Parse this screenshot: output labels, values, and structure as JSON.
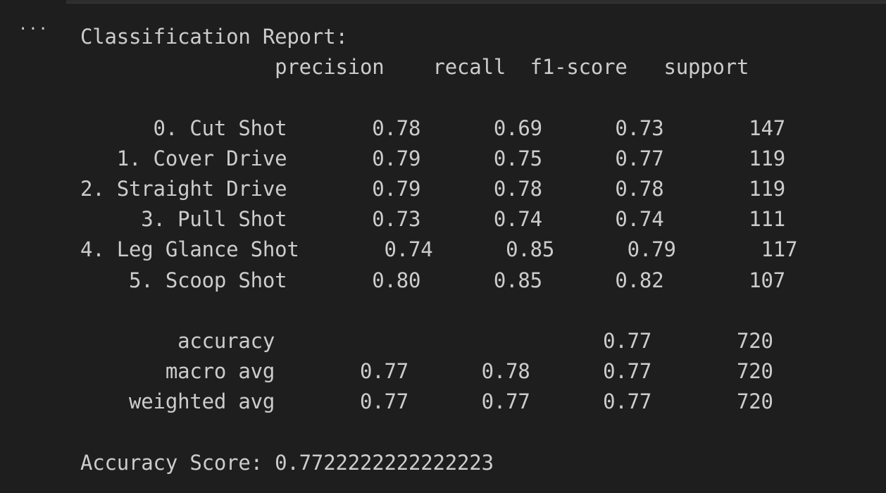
{
  "output": {
    "more_icon": "ellipsis-icon",
    "lines": [
      "Classification Report:",
      "                precision    recall  f1-score   support",
      "",
      "      0. Cut Shot       0.78      0.69      0.73       147",
      "   1. Cover Drive       0.79      0.75      0.77       119",
      "2. Straight Drive       0.79      0.78      0.78       119",
      "     3. Pull Shot       0.73      0.74      0.74       111",
      "4. Leg Glance Shot       0.74      0.85      0.79       117",
      "    5. Scoop Shot       0.80      0.85      0.82       107",
      "",
      "        accuracy                           0.77       720",
      "       macro avg       0.77      0.78      0.77       720",
      "    weighted avg       0.77      0.77      0.77       720",
      "",
      "Accuracy Score: 0.7722222222222223"
    ]
  }
}
